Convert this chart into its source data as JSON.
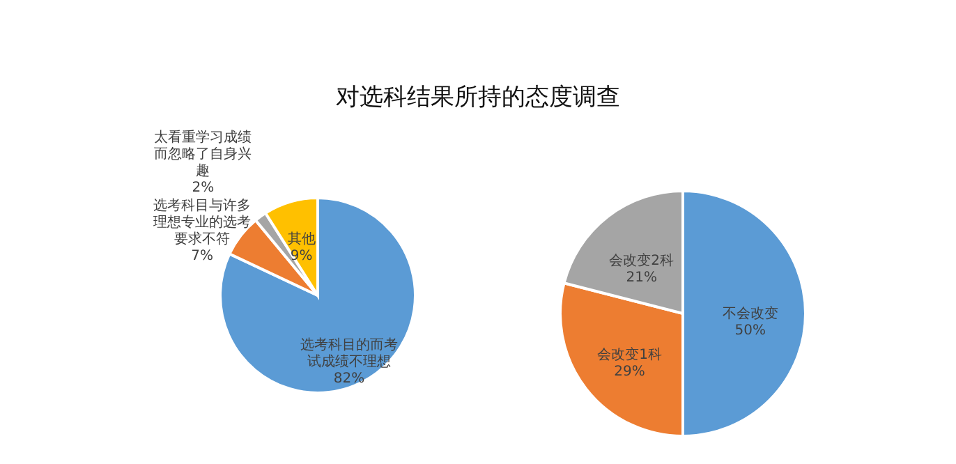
{
  "chart_data": [
    {
      "type": "pie",
      "title": "对选科结果所持的态度调查",
      "categories": [
        "选考科目的而考试成绩不理想",
        "选考科目与许多理想专业的选考要求不符",
        "太看重学习成绩而忽略了自身兴趣",
        "其他"
      ],
      "values": [
        82,
        7,
        2,
        9
      ],
      "value_labels": [
        "82%",
        "7%",
        "2%",
        "9%"
      ],
      "colors": [
        "#5b9bd5",
        "#ed7d31",
        "#a5a5a5",
        "#ffc000"
      ]
    },
    {
      "type": "pie",
      "categories": [
        "不会改变",
        "会改变1科",
        "会改变2科"
      ],
      "values": [
        50,
        29,
        21
      ],
      "value_labels": [
        "50%",
        "29%",
        "21%"
      ],
      "colors": [
        "#5b9bd5",
        "#ed7d31",
        "#a5a5a5"
      ]
    }
  ]
}
